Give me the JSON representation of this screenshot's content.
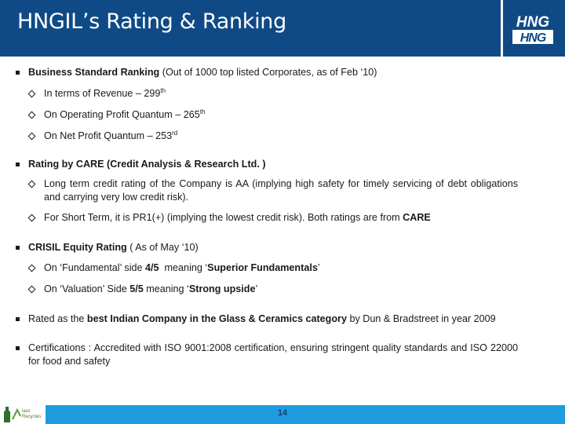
{
  "header": {
    "title": "HNGIL’s Rating & Ranking",
    "logo_top": "HNG",
    "logo_bottom": "HNG"
  },
  "sections": [
    {
      "lead_bold": "Business Standard Ranking",
      "lead_rest": " (Out of 1000 top listed Corporates, as of Feb ‘10)",
      "items": [
        {
          "text": "In terms of Revenue – 299",
          "sup": "th"
        },
        {
          "text": "On Operating Profit Quantum – 265",
          "sup": "th"
        },
        {
          "text": "On Net Profit Quantum – 253",
          "sup": "rd"
        }
      ]
    },
    {
      "lead_bold": "Rating by CARE (Credit Analysis & Research Ltd. )",
      "items": [
        {
          "text": "Long term credit rating of the Company is AA (implying high safety for timely servicing of debt obligations and carrying very low credit risk)."
        },
        {
          "text": "For Short Term, it is PR1(+) (implying the lowest credit risk). Both ratings are from ",
          "bold_tail": "CARE"
        }
      ]
    },
    {
      "lead_bold": "CRISIL Equity Rating",
      "lead_rest": " ( As of May ‘10)",
      "items": [
        {
          "pre": "On ‘Fundamental’ side ",
          "bold1": "4/5",
          "mid": "  meaning ‘",
          "bold2": "Superior Fundamentals",
          "post": "’"
        },
        {
          "pre": "On ‘Valuation’ Side ",
          "bold1": "5/5",
          "mid": " meaning ‘",
          "bold2": "Strong upside",
          "post": "’"
        }
      ]
    },
    {
      "pre": "Rated as the ",
      "bold": "best Indian Company in the Glass & Ceramics category",
      "post": " by Dun & Bradstreet in year 2009"
    },
    {
      "text": "Certifications : Accredited with ISO 9001:2008 certification, ensuring stringent quality standards and ISO 22000 for food and safety"
    }
  ],
  "footer": {
    "page_number": "14",
    "badge_line1": "lass",
    "badge_line2": "Recycles"
  },
  "colors": {
    "header_bg": "#0f4a86",
    "footer_bg": "#1f9be0"
  }
}
